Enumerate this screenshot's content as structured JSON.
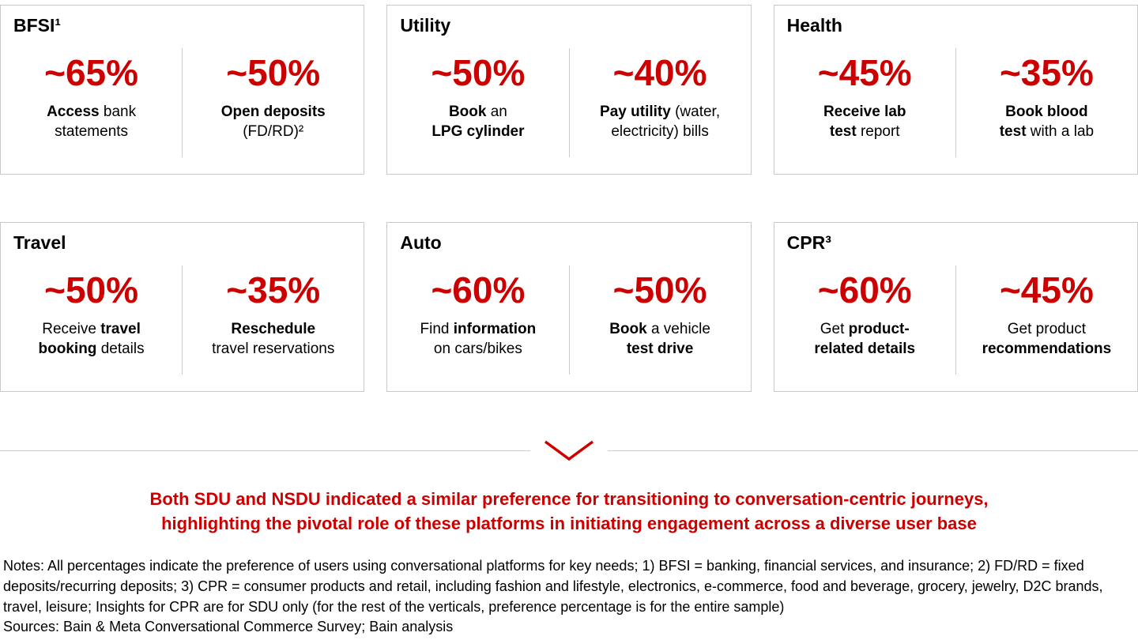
{
  "colors": {
    "accent_red": "#cc0000",
    "card_border": "#c9c9c9"
  },
  "cards": [
    {
      "title": "BFSI¹",
      "stats": [
        {
          "value": "~65%",
          "desc_html": "<b>Access</b> bank<br>statements"
        },
        {
          "value": "~50%",
          "desc_html": "<b>Open deposits</b><br>(FD/RD)²"
        }
      ]
    },
    {
      "title": "Utility",
      "stats": [
        {
          "value": "~50%",
          "desc_html": "<b>Book</b> an<br><b>LPG cylinder</b>"
        },
        {
          "value": "~40%",
          "desc_html": "<b>Pay utility</b> (water,<br>electricity) bills"
        }
      ]
    },
    {
      "title": "Health",
      "stats": [
        {
          "value": "~45%",
          "desc_html": "<b>Receive lab</b><br><b>test</b> report"
        },
        {
          "value": "~35%",
          "desc_html": "<b>Book blood</b><br><b>test</b> with a lab"
        }
      ]
    },
    {
      "title": "Travel",
      "stats": [
        {
          "value": "~50%",
          "desc_html": "Receive <b>travel</b><br><b>booking</b> details"
        },
        {
          "value": "~35%",
          "desc_html": "<b>Reschedule</b><br>travel reservations"
        }
      ]
    },
    {
      "title": "Auto",
      "stats": [
        {
          "value": "~60%",
          "desc_html": "Find <b>information</b><br>on cars/bikes"
        },
        {
          "value": "~50%",
          "desc_html": "<b>Book</b> a vehicle<br><b>test drive</b>"
        }
      ]
    },
    {
      "title": "CPR³",
      "stats": [
        {
          "value": "~60%",
          "desc_html": "Get <b>product-</b><br><b>related details</b>"
        },
        {
          "value": "~45%",
          "desc_html": "Get product<br><b>recommendations</b>"
        }
      ]
    }
  ],
  "takeaway_html": "Both SDU and NSDU indicated a similar preference for transitioning to conversation-centric journeys,<br>highlighting the pivotal role of these platforms in initiating engagement across a diverse user base",
  "notes": "Notes: All percentages indicate the preference of users using conversational platforms for key needs; 1) BFSI = banking, financial services, and insurance; 2) FD/RD = fixed deposits/recurring deposits; 3) CPR = consumer products and retail, including fashion and lifestyle, electronics, e-commerce, food and beverage, grocery, jewelry, D2C brands, travel, leisure; Insights for CPR are for SDU only (for the rest of the verticals, preference percentage is for the entire sample)",
  "sources": "Sources: Bain & Meta Conversational Commerce Survey; Bain analysis",
  "chart_data": {
    "type": "table",
    "unit": "percent (approximate, prefixed with ~ in the figure)",
    "categories": [
      "BFSI",
      "Utility",
      "Health",
      "Travel",
      "Auto",
      "CPR"
    ],
    "rows": [
      {
        "vertical": "BFSI",
        "use_cases": [
          {
            "label": "Access bank statements",
            "value": 65
          },
          {
            "label": "Open deposits (FD/RD)",
            "value": 50
          }
        ]
      },
      {
        "vertical": "Utility",
        "use_cases": [
          {
            "label": "Book an LPG cylinder",
            "value": 50
          },
          {
            "label": "Pay utility (water, electricity) bills",
            "value": 40
          }
        ]
      },
      {
        "vertical": "Health",
        "use_cases": [
          {
            "label": "Receive lab test report",
            "value": 45
          },
          {
            "label": "Book blood test with a lab",
            "value": 35
          }
        ]
      },
      {
        "vertical": "Travel",
        "use_cases": [
          {
            "label": "Receive travel booking details",
            "value": 50
          },
          {
            "label": "Reschedule travel reservations",
            "value": 35
          }
        ]
      },
      {
        "vertical": "Auto",
        "use_cases": [
          {
            "label": "Find information on cars/bikes",
            "value": 60
          },
          {
            "label": "Book a vehicle test drive",
            "value": 50
          }
        ]
      },
      {
        "vertical": "CPR",
        "use_cases": [
          {
            "label": "Get product-related details",
            "value": 60
          },
          {
            "label": "Get product recommendations",
            "value": 45
          }
        ]
      }
    ]
  }
}
